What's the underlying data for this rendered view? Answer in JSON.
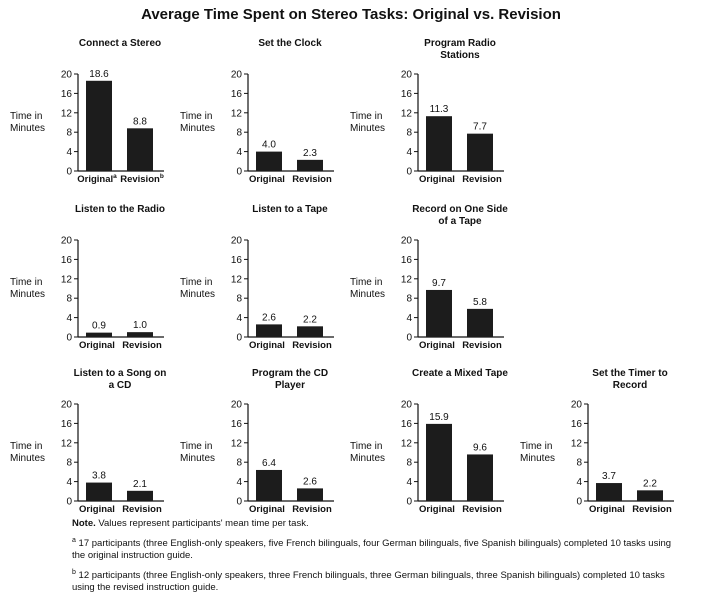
{
  "title": "Average Time Spent on Stereo Tasks: Original vs. Revision",
  "colors": {
    "bar": "#1c1c1c",
    "axis": "#111111"
  },
  "chart_data": [
    {
      "type": "bar",
      "title": "Connect a Stereo",
      "ylabel": "Time in Minutes",
      "ylim": [
        0,
        20
      ],
      "yticks": [
        0,
        4,
        8,
        12,
        16,
        20
      ],
      "categories": [
        "Original",
        "Revision"
      ],
      "category_superscripts": [
        "a",
        "b"
      ],
      "values": [
        18.6,
        8.8
      ],
      "labels": [
        "18.6",
        "8.8"
      ]
    },
    {
      "type": "bar",
      "title": "Set the Clock",
      "ylabel": "Time in Minutes",
      "ylim": [
        0,
        20
      ],
      "yticks": [
        0,
        4,
        8,
        12,
        16,
        20
      ],
      "categories": [
        "Original",
        "Revision"
      ],
      "values": [
        4.0,
        2.3
      ],
      "labels": [
        "4.0",
        "2.3"
      ]
    },
    {
      "type": "bar",
      "title": "Program Radio Stations",
      "ylabel": "Time in Minutes",
      "ylim": [
        0,
        20
      ],
      "yticks": [
        0,
        4,
        8,
        12,
        16,
        20
      ],
      "categories": [
        "Original",
        "Revision"
      ],
      "values": [
        11.3,
        7.7
      ],
      "labels": [
        "11.3",
        "7.7"
      ]
    },
    {
      "type": "bar",
      "title": "Listen to the Radio",
      "ylabel": "Time in Minutes",
      "ylim": [
        0,
        20
      ],
      "yticks": [
        0,
        4,
        8,
        12,
        16,
        20
      ],
      "categories": [
        "Original",
        "Revision"
      ],
      "values": [
        0.9,
        1.0
      ],
      "labels": [
        "0.9",
        "1.0"
      ]
    },
    {
      "type": "bar",
      "title": "Listen to a Tape",
      "ylabel": "Time in Minutes",
      "ylim": [
        0,
        20
      ],
      "yticks": [
        0,
        4,
        8,
        12,
        16,
        20
      ],
      "categories": [
        "Original",
        "Revision"
      ],
      "values": [
        2.6,
        2.2
      ],
      "labels": [
        "2.6",
        "2.2"
      ]
    },
    {
      "type": "bar",
      "title": "Record on One Side of a Tape",
      "ylabel": "Time in Minutes",
      "ylim": [
        0,
        20
      ],
      "yticks": [
        0,
        4,
        8,
        12,
        16,
        20
      ],
      "categories": [
        "Original",
        "Revision"
      ],
      "values": [
        9.7,
        5.8
      ],
      "labels": [
        "9.7",
        "5.8"
      ]
    },
    {
      "type": "bar",
      "title": "Listen to a Song on a CD",
      "ylabel": "Time in Minutes",
      "ylim": [
        0,
        20
      ],
      "yticks": [
        0,
        4,
        8,
        12,
        16,
        20
      ],
      "categories": [
        "Original",
        "Revision"
      ],
      "values": [
        3.8,
        2.1
      ],
      "labels": [
        "3.8",
        "2.1"
      ]
    },
    {
      "type": "bar",
      "title": "Program the CD Player",
      "ylabel": "Time in Minutes",
      "ylim": [
        0,
        20
      ],
      "yticks": [
        0,
        4,
        8,
        12,
        16,
        20
      ],
      "categories": [
        "Original",
        "Revision"
      ],
      "values": [
        6.4,
        2.6
      ],
      "labels": [
        "6.4",
        "2.6"
      ]
    },
    {
      "type": "bar",
      "title": "Create a Mixed Tape",
      "ylabel": "Time in Minutes",
      "ylim": [
        0,
        20
      ],
      "yticks": [
        0,
        4,
        8,
        12,
        16,
        20
      ],
      "categories": [
        "Original",
        "Revision"
      ],
      "values": [
        15.9,
        9.6
      ],
      "labels": [
        "15.9",
        "9.6"
      ]
    },
    {
      "type": "bar",
      "title": "Set the Timer to Record",
      "ylabel": "Time in Minutes",
      "ylim": [
        0,
        20
      ],
      "yticks": [
        0,
        4,
        8,
        12,
        16,
        20
      ],
      "categories": [
        "Original",
        "Revision"
      ],
      "values": [
        3.7,
        2.2
      ],
      "labels": [
        "3.7",
        "2.2"
      ]
    }
  ],
  "notes": {
    "note_label": "Note.",
    "note_text": "Values represent participants' mean time per task.",
    "footnote_a_mark": "a",
    "footnote_a": "17 participants (three English-only speakers, five French bilinguals, four German bilinguals, five Spanish bilinguals) completed 10 tasks using the original instruction guide.",
    "footnote_b_mark": "b",
    "footnote_b": "12 participants (three English-only speakers, three French bilinguals, three German bilinguals, three Spanish bilinguals) completed 10 tasks using the revised instruction guide."
  }
}
